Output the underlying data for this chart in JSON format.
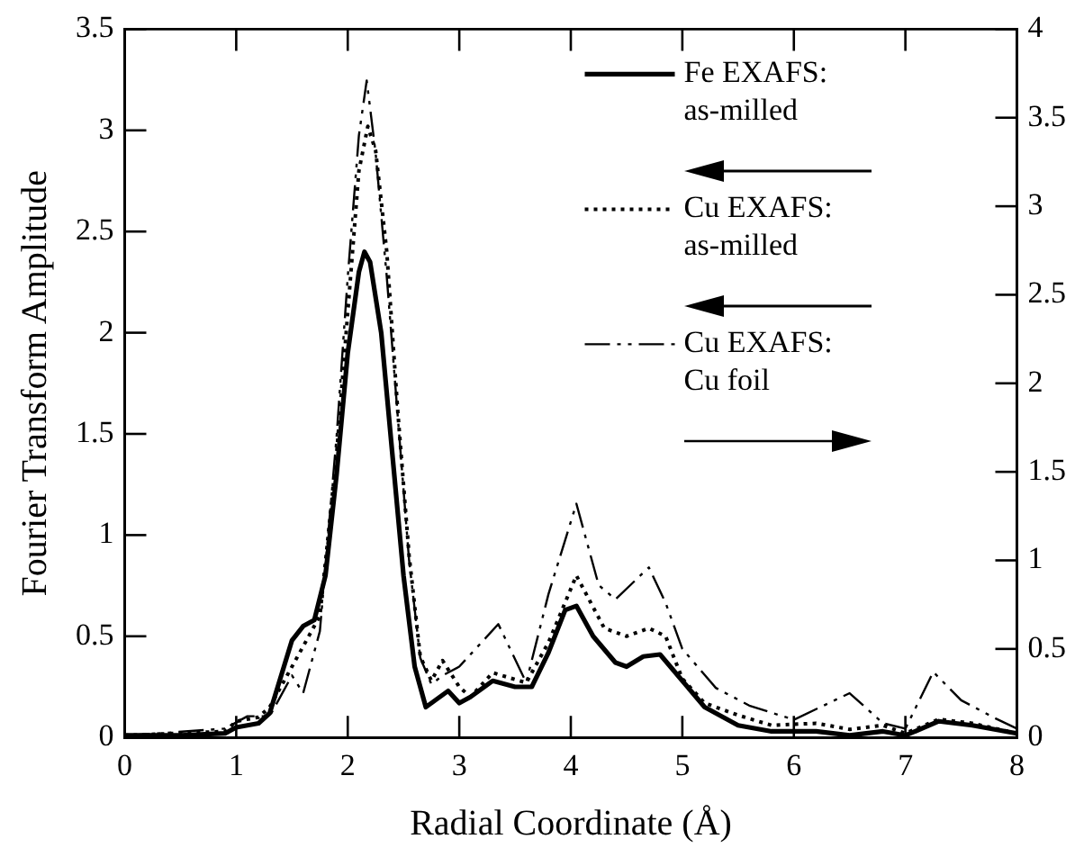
{
  "chart_data": {
    "type": "line",
    "xlabel": "Radial Coordinate (Å)",
    "ylabel": "Fourier Transform Amplitude",
    "xlim": [
      0,
      8
    ],
    "xticks": [
      0,
      1,
      2,
      3,
      4,
      5,
      6,
      7,
      8
    ],
    "ylim": [
      0,
      3.5
    ],
    "yticks": [
      0,
      0.5,
      1,
      1.5,
      2,
      2.5,
      3,
      3.5
    ],
    "y2lim": [
      0,
      4
    ],
    "y2ticks": [
      0,
      0.5,
      1,
      1.5,
      2,
      2.5,
      3,
      3.5,
      4
    ],
    "legend": "top right",
    "grid": false,
    "marker": "none",
    "series": [
      {
        "name": "Fe EXAFS: as-milled",
        "color": "#000000",
        "line_style": "solid",
        "axis": "y",
        "x": [
          0,
          0.5,
          0.9,
          1.0,
          1.2,
          1.3,
          1.4,
          1.5,
          1.6,
          1.7,
          1.8,
          1.9,
          2.0,
          2.1,
          2.15,
          2.2,
          2.3,
          2.4,
          2.5,
          2.6,
          2.7,
          2.8,
          2.9,
          3.0,
          3.1,
          3.3,
          3.5,
          3.65,
          3.8,
          3.95,
          4.05,
          4.2,
          4.4,
          4.5,
          4.65,
          4.8,
          5.0,
          5.2,
          5.5,
          5.8,
          6.2,
          6.5,
          6.8,
          7.0,
          7.3,
          7.6,
          8.0
        ],
        "values": [
          0.01,
          0.01,
          0.02,
          0.05,
          0.07,
          0.12,
          0.3,
          0.48,
          0.55,
          0.58,
          0.8,
          1.3,
          1.9,
          2.3,
          2.4,
          2.35,
          2.0,
          1.4,
          0.8,
          0.35,
          0.15,
          0.19,
          0.23,
          0.17,
          0.2,
          0.28,
          0.25,
          0.25,
          0.42,
          0.63,
          0.65,
          0.5,
          0.37,
          0.35,
          0.4,
          0.41,
          0.28,
          0.15,
          0.06,
          0.03,
          0.03,
          0.01,
          0.03,
          0.01,
          0.08,
          0.06,
          0.02
        ]
      },
      {
        "name": "Cu EXAFS: as-milled",
        "color": "#000000",
        "line_style": "dotted",
        "axis": "y",
        "x": [
          0,
          0.9,
          1.0,
          1.2,
          1.3,
          1.45,
          1.6,
          1.75,
          1.9,
          2.0,
          2.1,
          2.18,
          2.25,
          2.35,
          2.45,
          2.55,
          2.65,
          2.75,
          2.85,
          3.0,
          3.1,
          3.3,
          3.6,
          3.8,
          4.05,
          4.3,
          4.5,
          4.7,
          4.85,
          5.0,
          5.2,
          5.5,
          5.8,
          6.2,
          6.5,
          6.8,
          7.0,
          7.3,
          7.6,
          8.0
        ],
        "values": [
          0.01,
          0.03,
          0.08,
          0.1,
          0.15,
          0.3,
          0.45,
          0.6,
          1.4,
          2.1,
          2.8,
          3.02,
          2.9,
          2.4,
          1.6,
          0.9,
          0.4,
          0.28,
          0.38,
          0.25,
          0.2,
          0.32,
          0.27,
          0.47,
          0.8,
          0.54,
          0.5,
          0.54,
          0.5,
          0.29,
          0.17,
          0.11,
          0.06,
          0.07,
          0.04,
          0.06,
          0.02,
          0.09,
          0.07,
          0.02
        ]
      },
      {
        "name": "Cu EXAFS: Cu foil",
        "color": "#000000",
        "line_style": "dashed",
        "axis": "y2",
        "x": [
          0,
          0.9,
          1.1,
          1.3,
          1.5,
          1.6,
          1.75,
          1.9,
          2.0,
          2.1,
          2.17,
          2.25,
          2.35,
          2.45,
          2.55,
          2.65,
          2.75,
          2.85,
          3.0,
          3.35,
          3.6,
          3.8,
          4.05,
          4.25,
          4.4,
          4.7,
          4.85,
          5.0,
          5.3,
          5.6,
          6.0,
          6.5,
          6.8,
          7.0,
          7.25,
          7.5,
          7.8,
          8.0
        ],
        "values": [
          0.01,
          0.05,
          0.12,
          0.12,
          0.35,
          0.25,
          0.6,
          1.7,
          2.6,
          3.4,
          3.71,
          3.3,
          2.6,
          1.8,
          1.0,
          0.45,
          0.3,
          0.35,
          0.4,
          0.64,
          0.31,
          0.81,
          1.32,
          0.86,
          0.78,
          0.96,
          0.76,
          0.5,
          0.28,
          0.18,
          0.1,
          0.25,
          0.08,
          0.05,
          0.37,
          0.21,
          0.11,
          0.05
        ]
      }
    ]
  }
}
